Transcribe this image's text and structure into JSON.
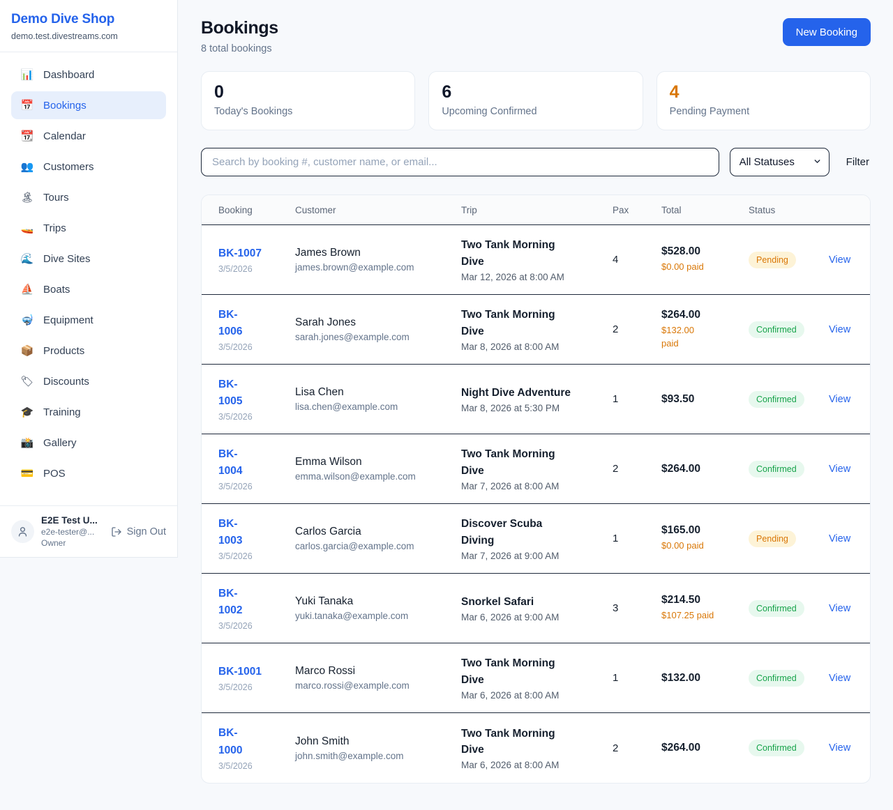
{
  "colors": {
    "accent_blue": "#2563eb",
    "pending_orange": "#d97706",
    "confirmed_green": "#16a34a",
    "page_background": "#f7f9fc"
  },
  "sidebar": {
    "brand": {
      "name": "Demo Dive Shop",
      "domain": "demo.test.divestreams.com"
    },
    "items": [
      {
        "label": "Dashboard",
        "icon": "📊",
        "active": false
      },
      {
        "label": "Bookings",
        "icon": "📅",
        "active": true
      },
      {
        "label": "Calendar",
        "icon": "📆",
        "active": false
      },
      {
        "label": "Customers",
        "icon": "👥",
        "active": false
      },
      {
        "label": "Tours",
        "icon": "🏝",
        "active": false
      },
      {
        "label": "Trips",
        "icon": "🚤",
        "active": false
      },
      {
        "label": "Dive Sites",
        "icon": "🌊",
        "active": false
      },
      {
        "label": "Boats",
        "icon": "⛵",
        "active": false
      },
      {
        "label": "Equipment",
        "icon": "🤿",
        "active": false
      },
      {
        "label": "Products",
        "icon": "📦",
        "active": false
      },
      {
        "label": "Discounts",
        "icon": "🏷",
        "active": false
      },
      {
        "label": "Training",
        "icon": "🎓",
        "active": false
      },
      {
        "label": "Gallery",
        "icon": "📸",
        "active": false
      },
      {
        "label": "POS",
        "icon": "💳",
        "active": false
      }
    ],
    "user": {
      "name": "E2E Test U...",
      "email": "e2e-tester@...",
      "role": "Owner",
      "sign_out_label": "Sign Out"
    }
  },
  "header": {
    "title": "Bookings",
    "subtitle": "8 total bookings",
    "new_booking_label": "New Booking"
  },
  "stats": [
    {
      "value": "0",
      "label": "Today's Bookings",
      "value_color": "#0f172a"
    },
    {
      "value": "6",
      "label": "Upcoming Confirmed",
      "value_color": "#0f172a"
    },
    {
      "value": "4",
      "label": "Pending Payment",
      "value_color": "#d97706"
    }
  ],
  "filters": {
    "search_placeholder": "Search by booking #, customer name, or email...",
    "status_selected": "All Statuses",
    "filter_label": "Filter"
  },
  "table": {
    "columns": [
      "Booking",
      "Customer",
      "Trip",
      "Pax",
      "Total",
      "Status"
    ],
    "view_label": "View",
    "rows": [
      {
        "id_lines": [
          "BK-1007"
        ],
        "date": "3/5/2026",
        "customer": "James Brown",
        "email": "james.brown@example.com",
        "trip_lines": [
          "Two Tank Morning",
          "Dive"
        ],
        "trip_time": "Mar 12, 2026 at 8:00 AM",
        "pax": "4",
        "total": "$528.00",
        "paid_lines": [
          "$0.00 paid"
        ],
        "status": "Pending"
      },
      {
        "id_lines": [
          "BK-",
          "1006"
        ],
        "date": "3/5/2026",
        "customer": "Sarah Jones",
        "email": "sarah.jones@example.com",
        "trip_lines": [
          "Two Tank Morning",
          "Dive"
        ],
        "trip_time": "Mar 8, 2026 at 8:00 AM",
        "pax": "2",
        "total": "$264.00",
        "paid_lines": [
          "$132.00",
          "paid"
        ],
        "status": "Confirmed"
      },
      {
        "id_lines": [
          "BK-",
          "1005"
        ],
        "date": "3/5/2026",
        "customer": "Lisa Chen",
        "email": "lisa.chen@example.com",
        "trip_lines": [
          "Night Dive Adventure"
        ],
        "trip_time": "Mar 8, 2026 at 5:30 PM",
        "pax": "1",
        "total": "$93.50",
        "paid_lines": [],
        "status": "Confirmed"
      },
      {
        "id_lines": [
          "BK-",
          "1004"
        ],
        "date": "3/5/2026",
        "customer": "Emma Wilson",
        "email": "emma.wilson@example.com",
        "trip_lines": [
          "Two Tank Morning",
          "Dive"
        ],
        "trip_time": "Mar 7, 2026 at 8:00 AM",
        "pax": "2",
        "total": "$264.00",
        "paid_lines": [],
        "status": "Confirmed"
      },
      {
        "id_lines": [
          "BK-",
          "1003"
        ],
        "date": "3/5/2026",
        "customer": "Carlos Garcia",
        "email": "carlos.garcia@example.com",
        "trip_lines": [
          "Discover Scuba",
          "Diving"
        ],
        "trip_time": "Mar 7, 2026 at 9:00 AM",
        "pax": "1",
        "total": "$165.00",
        "paid_lines": [
          "$0.00 paid"
        ],
        "status": "Pending"
      },
      {
        "id_lines": [
          "BK-",
          "1002"
        ],
        "date": "3/5/2026",
        "customer": "Yuki Tanaka",
        "email": "yuki.tanaka@example.com",
        "trip_lines": [
          "Snorkel Safari"
        ],
        "trip_time": "Mar 6, 2026 at 9:00 AM",
        "pax": "3",
        "total": "$214.50",
        "paid_lines": [
          "$107.25 paid"
        ],
        "status": "Confirmed"
      },
      {
        "id_lines": [
          "BK-1001"
        ],
        "date": "3/5/2026",
        "customer": "Marco Rossi",
        "email": "marco.rossi@example.com",
        "trip_lines": [
          "Two Tank Morning",
          "Dive"
        ],
        "trip_time": "Mar 6, 2026 at 8:00 AM",
        "pax": "1",
        "total": "$132.00",
        "paid_lines": [],
        "status": "Confirmed"
      },
      {
        "id_lines": [
          "BK-",
          "1000"
        ],
        "date": "3/5/2026",
        "customer": "John Smith",
        "email": "john.smith@example.com",
        "trip_lines": [
          "Two Tank Morning",
          "Dive"
        ],
        "trip_time": "Mar 6, 2026 at 8:00 AM",
        "pax": "2",
        "total": "$264.00",
        "paid_lines": [],
        "status": "Confirmed"
      }
    ]
  }
}
